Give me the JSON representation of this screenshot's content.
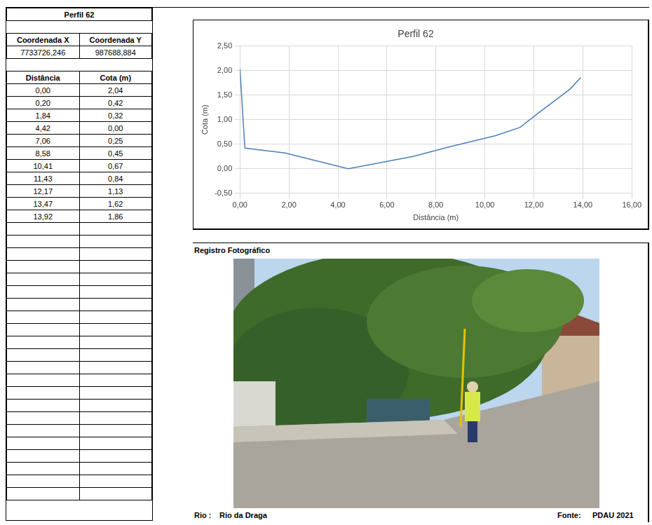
{
  "header": {
    "title": "Perfil 62"
  },
  "coordinates": {
    "columns": [
      "Coordenada X",
      "Coordenada Y"
    ],
    "values": [
      "7733726,246",
      "987688,884"
    ]
  },
  "table": {
    "columns": [
      "Distância",
      "Cota (m)"
    ],
    "rows": [
      [
        "0,00",
        "2,04"
      ],
      [
        "0,20",
        "0,42"
      ],
      [
        "1,84",
        "0,32"
      ],
      [
        "4,42",
        "0,00"
      ],
      [
        "7,06",
        "0,25"
      ],
      [
        "8,58",
        "0,45"
      ],
      [
        "10,41",
        "0,67"
      ],
      [
        "11,43",
        "0,84"
      ],
      [
        "12,17",
        "1,13"
      ],
      [
        "13,47",
        "1,62"
      ],
      [
        "13,92",
        "1,86"
      ]
    ]
  },
  "chart_data": {
    "type": "line",
    "title": "Perfil 62",
    "x_label": "Distância (m)",
    "y_label": "Cota (m)",
    "x": [
      0,
      0.2,
      1.84,
      4.42,
      7.06,
      8.58,
      10.41,
      11.43,
      12.17,
      13.47,
      13.92
    ],
    "values": [
      2.04,
      0.42,
      0.32,
      0,
      0.25,
      0.45,
      0.67,
      0.84,
      1.13,
      1.62,
      1.86
    ],
    "color": "#4a7ebb",
    "xlim": [
      0,
      16
    ],
    "xticks": [
      {
        "value": 0,
        "label": "0,00"
      },
      {
        "value": 2,
        "label": "2,00"
      },
      {
        "value": 4,
        "label": "4,00"
      },
      {
        "value": 6,
        "label": "6,00"
      },
      {
        "value": 8,
        "label": "8,00"
      },
      {
        "value": 10,
        "label": "10,00"
      },
      {
        "value": 12,
        "label": "12,00"
      },
      {
        "value": 14,
        "label": "14,00"
      },
      {
        "value": 16,
        "label": "16,00"
      }
    ],
    "ylim": [
      -0.5,
      2.5
    ],
    "yticks": [
      {
        "value": -0.5,
        "label": "-0,50"
      },
      {
        "value": 0,
        "label": "0,00"
      },
      {
        "value": 0.5,
        "label": "0,50"
      },
      {
        "value": 1,
        "label": "1,00"
      },
      {
        "value": 1.5,
        "label": "1,50"
      },
      {
        "value": 2,
        "label": "2,00"
      },
      {
        "value": 2.5,
        "label": "2,50"
      }
    ],
    "grid": true
  },
  "photo": {
    "title": "Registro Fotográfico",
    "river_label": "Rio :",
    "river": "Rio da Draga",
    "source_label": "Fonte:",
    "source": "PDAU 2021"
  }
}
